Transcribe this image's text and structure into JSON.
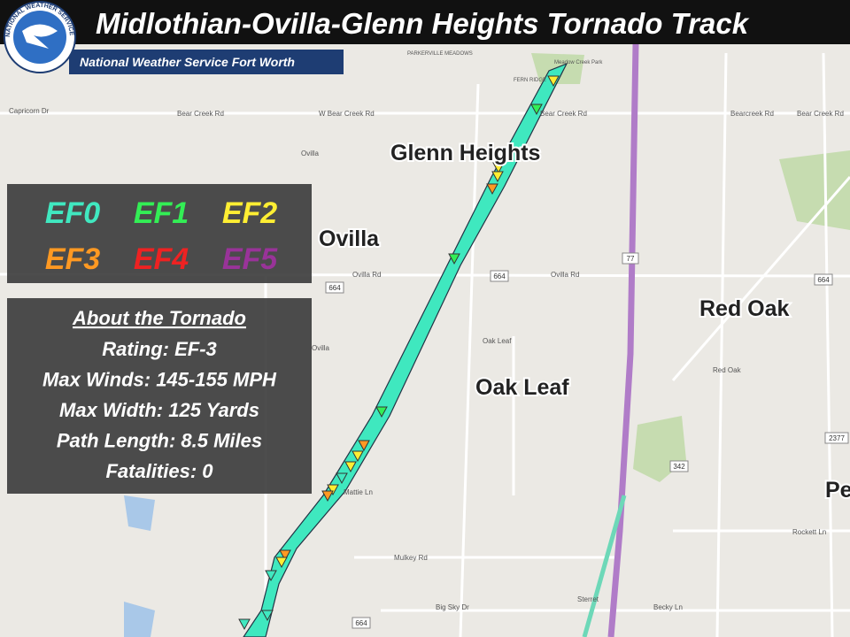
{
  "header": {
    "title": "Midlothian-Ovilla-Glenn Heights Tornado Track",
    "subtitle": "National Weather Service Fort Worth",
    "logo_text": "NATIONAL WEATHER SERVICE"
  },
  "legend": {
    "items": [
      {
        "label": "EF0",
        "color": "#40e8c0"
      },
      {
        "label": "EF1",
        "color": "#33ee55"
      },
      {
        "label": "EF2",
        "color": "#ffee33"
      },
      {
        "label": "EF3",
        "color": "#ff9922"
      },
      {
        "label": "EF4",
        "color": "#ee2222"
      },
      {
        "label": "EF5",
        "color": "#993399"
      }
    ]
  },
  "info": {
    "heading": "About the Tornado",
    "lines": [
      "Rating: EF-3",
      "Max Winds: 145-155 MPH",
      "Max Width: 125 Yards",
      "Path Length: 8.5 Miles",
      "Fatalities: 0"
    ]
  },
  "map": {
    "places": [
      "Glenn Heights",
      "Ovilla",
      "Red Oak",
      "Oak Leaf",
      "Pe"
    ],
    "streets": [
      "Bear Creek Rd",
      "W Bear Creek Rd",
      "Bear Creek Rd",
      "Bearcreek Rd",
      "Bear Creek Rd",
      "Ovilla",
      "Ovilla Rd",
      "Ovilla Rd",
      "Oak Leaf",
      "Red Oak",
      "Ovilla",
      "Mattie Ln",
      "Mulkey Rd",
      "Big Sky Dr",
      "Sterret",
      "Becky Ln",
      "Rockett Ln",
      "Capricorn Dr",
      "FERN RIDGE",
      "PARKERVILLE MEADOWS",
      "Meadow Creek Park"
    ],
    "shields": [
      "664",
      "664",
      "77",
      "664",
      "342",
      "2377",
      "664"
    ]
  }
}
